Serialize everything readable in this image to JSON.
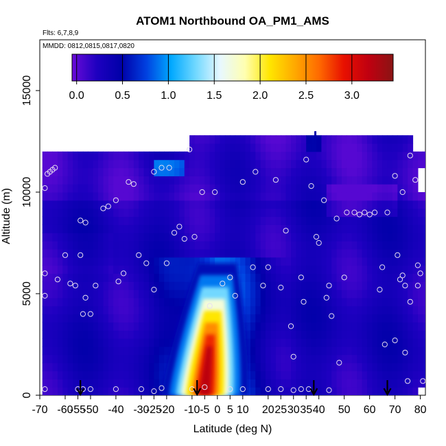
{
  "chart_data": {
    "type": "heatmap",
    "title": "ATOM1 Northbound OA_PM1_AMS",
    "subtitle_flights": "Flts: 6,7,8,9",
    "subtitle_dates": "MMDD: 0812,0815,0817,0820",
    "xlabel": "Latitude (deg N)",
    "ylabel": "Altitude (m)",
    "xlim": [
      -70,
      82
    ],
    "ylim": [
      0,
      17500
    ],
    "x_ticks": [
      "-70",
      "-60",
      "-55",
      "-50",
      "-40",
      "-30",
      "-25",
      "-20",
      "-10",
      "-5",
      "0",
      "5",
      "10",
      "20",
      "25",
      "30",
      "35",
      "40",
      "50",
      "60",
      "70",
      "80"
    ],
    "x_tick_values": [
      -70,
      -60,
      -55,
      -50,
      -40,
      -30,
      -25,
      -20,
      -10,
      -5,
      0,
      5,
      10,
      20,
      25,
      30,
      35,
      40,
      50,
      60,
      70,
      80
    ],
    "y_ticks": [
      "0",
      "5000",
      "10000",
      "15000"
    ],
    "y_tick_values": [
      0,
      5000,
      10000,
      15000
    ],
    "colorbar": {
      "min": -0.05,
      "max": 3.45,
      "tick_labels": [
        "0.0",
        "0.5",
        "1.0",
        "1.5",
        "2.0",
        "2.5",
        "3.0"
      ],
      "tick_values": [
        0,
        0.5,
        1.0,
        1.5,
        2.0,
        2.5,
        3.0
      ],
      "colors": [
        "#6a0bd8",
        "#1e00c0",
        "#0000a8",
        "#0040e0",
        "#00a8ff",
        "#70d8ff",
        "#e8f8ff",
        "#ffffb0",
        "#ffe600",
        "#ffaa00",
        "#ff6a00",
        "#e81000",
        "#c00010",
        "#8a1414"
      ]
    },
    "plume": {
      "description_values": "enhanced OA in tropical lower troposphere",
      "peak_value": 3.2,
      "center_lat_surface": -5,
      "center_lat_top": 0,
      "top_altitude": 6500
    },
    "grid": false,
    "series": [
      {
        "type": "flight_points",
        "points": [
          [
            -68,
            10200
          ],
          [
            -67,
            10900
          ],
          [
            -66,
            11000
          ],
          [
            -65,
            11100
          ],
          [
            -64,
            11200
          ],
          [
            -68,
            6000
          ],
          [
            -68,
            4900
          ],
          [
            -68,
            300
          ],
          [
            -63,
            5700
          ],
          [
            -60,
            6900
          ],
          [
            -58,
            5500
          ],
          [
            -56,
            5400
          ],
          [
            -54,
            6900
          ],
          [
            -54,
            8600
          ],
          [
            -52,
            8500
          ],
          [
            -52,
            4800
          ],
          [
            -53,
            4000
          ],
          [
            -50,
            4000
          ],
          [
            -48,
            5400
          ],
          [
            -45,
            9200
          ],
          [
            -43,
            9300
          ],
          [
            -40,
            9600
          ],
          [
            -39,
            5600
          ],
          [
            -37,
            6000
          ],
          [
            -35,
            10500
          ],
          [
            -33,
            10400
          ],
          [
            -31,
            6900
          ],
          [
            -28,
            6500
          ],
          [
            -25,
            11000
          ],
          [
            -25,
            5200
          ],
          [
            -22,
            11200
          ],
          [
            -19,
            11200
          ],
          [
            -20,
            6500
          ],
          [
            -17,
            8000
          ],
          [
            -15,
            8300
          ],
          [
            -13,
            7700
          ],
          [
            -11,
            12100
          ],
          [
            -9,
            7800
          ],
          [
            -6,
            10000
          ],
          [
            -1,
            10000
          ],
          [
            -55,
            300
          ],
          [
            -53,
            300
          ],
          [
            -50,
            300
          ],
          [
            -40,
            300
          ],
          [
            -30,
            300
          ],
          [
            -25,
            200
          ],
          [
            -22,
            350
          ],
          [
            -10,
            300
          ],
          [
            -5,
            400
          ],
          [
            5,
            300
          ],
          [
            10,
            300
          ],
          [
            20,
            300
          ],
          [
            25,
            300
          ],
          [
            30,
            250
          ],
          [
            33,
            300
          ],
          [
            36,
            300
          ],
          [
            44,
            250
          ],
          [
            -3,
            4400
          ],
          [
            2,
            5500
          ],
          [
            5,
            5800
          ],
          [
            7,
            4900
          ],
          [
            10,
            10500
          ],
          [
            14,
            6300
          ],
          [
            15,
            11000
          ],
          [
            18,
            5400
          ],
          [
            20,
            6300
          ],
          [
            23,
            10600
          ],
          [
            25,
            5300
          ],
          [
            27,
            8100
          ],
          [
            29,
            3400
          ],
          [
            30,
            1900
          ],
          [
            33,
            5800
          ],
          [
            34,
            4600
          ],
          [
            35,
            11600
          ],
          [
            37,
            10300
          ],
          [
            39,
            7800
          ],
          [
            40,
            7500
          ],
          [
            42,
            9600
          ],
          [
            43,
            4800
          ],
          [
            44,
            5400
          ],
          [
            45,
            3900
          ],
          [
            47,
            8700
          ],
          [
            48,
            1600
          ],
          [
            50,
            5800
          ],
          [
            51,
            9000
          ],
          [
            54,
            9000
          ],
          [
            56,
            8900
          ],
          [
            58,
            9000
          ],
          [
            60,
            8900
          ],
          [
            62,
            9000
          ],
          [
            64,
            5200
          ],
          [
            65,
            6300
          ],
          [
            66,
            2500
          ],
          [
            67,
            9000
          ],
          [
            70,
            2700
          ],
          [
            70,
            10800
          ],
          [
            71,
            6900
          ],
          [
            73,
            10000
          ],
          [
            72,
            5700
          ],
          [
            73,
            5900
          ],
          [
            74,
            5400
          ],
          [
            74,
            2100
          ],
          [
            75,
            700
          ],
          [
            76,
            11800
          ],
          [
            78,
            10600
          ],
          [
            79,
            6400
          ],
          [
            80,
            6000
          ],
          [
            81,
            700
          ],
          [
            76,
            4600
          ],
          [
            79,
            5400
          ]
        ]
      }
    ],
    "arrows_lat": [
      -54,
      -8,
      38,
      67
    ]
  }
}
